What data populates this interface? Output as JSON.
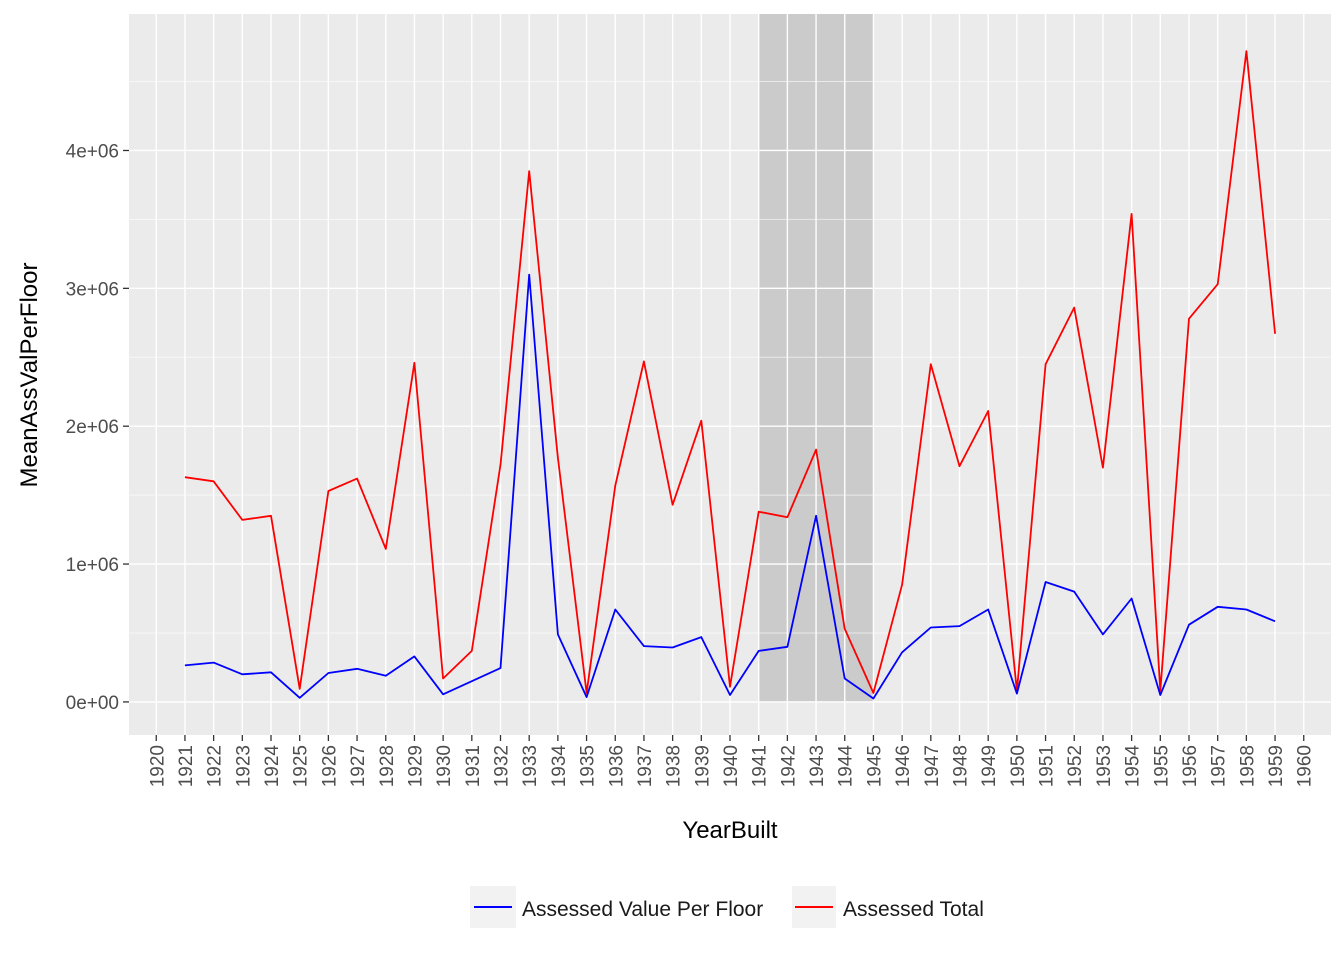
{
  "chart_data": {
    "type": "line",
    "xlabel": "YearBuilt",
    "ylabel": "MeanAssValPerFloor",
    "xlim": [
      1919.05,
      1960.95
    ],
    "ylim": [
      -240000,
      4990000
    ],
    "x_ticks": [
      1920,
      1921,
      1922,
      1923,
      1924,
      1925,
      1926,
      1927,
      1928,
      1929,
      1930,
      1931,
      1932,
      1933,
      1934,
      1935,
      1936,
      1937,
      1938,
      1939,
      1940,
      1941,
      1942,
      1943,
      1944,
      1945,
      1946,
      1947,
      1948,
      1949,
      1950,
      1951,
      1952,
      1953,
      1954,
      1955,
      1956,
      1957,
      1958,
      1959,
      1960
    ],
    "y_ticks": [
      {
        "value": 0,
        "label": "0e+00"
      },
      {
        "value": 1000000,
        "label": "1e+06"
      },
      {
        "value": 2000000,
        "label": "2e+06"
      },
      {
        "value": 3000000,
        "label": "3e+06"
      },
      {
        "value": 4000000,
        "label": "4e+06"
      }
    ],
    "shaded_region": {
      "x": [
        1941,
        1945
      ],
      "y": [
        0,
        4990000
      ],
      "color": "#bdbdbd"
    },
    "x": [
      1921,
      1922,
      1923,
      1924,
      1925,
      1926,
      1927,
      1928,
      1929,
      1930,
      1931,
      1932,
      1933,
      1934,
      1935,
      1936,
      1937,
      1938,
      1939,
      1940,
      1941,
      1942,
      1943,
      1944,
      1945,
      1946,
      1947,
      1948,
      1949,
      1950,
      1951,
      1952,
      1953,
      1954,
      1955,
      1956,
      1957,
      1958,
      1959
    ],
    "series": [
      {
        "name": "Assessed Value Per Floor",
        "color": "#0000ff",
        "values": [
          265000,
          285000,
          200000,
          215000,
          30000,
          210000,
          240000,
          190000,
          330000,
          55000,
          150000,
          245000,
          3100000,
          490000,
          35000,
          670000,
          405000,
          395000,
          470000,
          50000,
          370000,
          400000,
          1350000,
          170000,
          25000,
          360000,
          540000,
          550000,
          670000,
          60000,
          870000,
          800000,
          490000,
          750000,
          50000,
          560000,
          690000,
          670000,
          585000
        ]
      },
      {
        "name": "Assessed Total",
        "color": "#ff0000",
        "values": [
          1630000,
          1600000,
          1320000,
          1350000,
          95000,
          1530000,
          1620000,
          1110000,
          2460000,
          170000,
          370000,
          1720000,
          3850000,
          1770000,
          65000,
          1570000,
          2470000,
          1430000,
          2040000,
          110000,
          1380000,
          1340000,
          1830000,
          530000,
          65000,
          850000,
          2450000,
          1710000,
          2110000,
          80000,
          2450000,
          2860000,
          1700000,
          3540000,
          80000,
          2780000,
          3030000,
          4720000,
          2670000
        ]
      }
    ],
    "legend_position": "bottom"
  }
}
